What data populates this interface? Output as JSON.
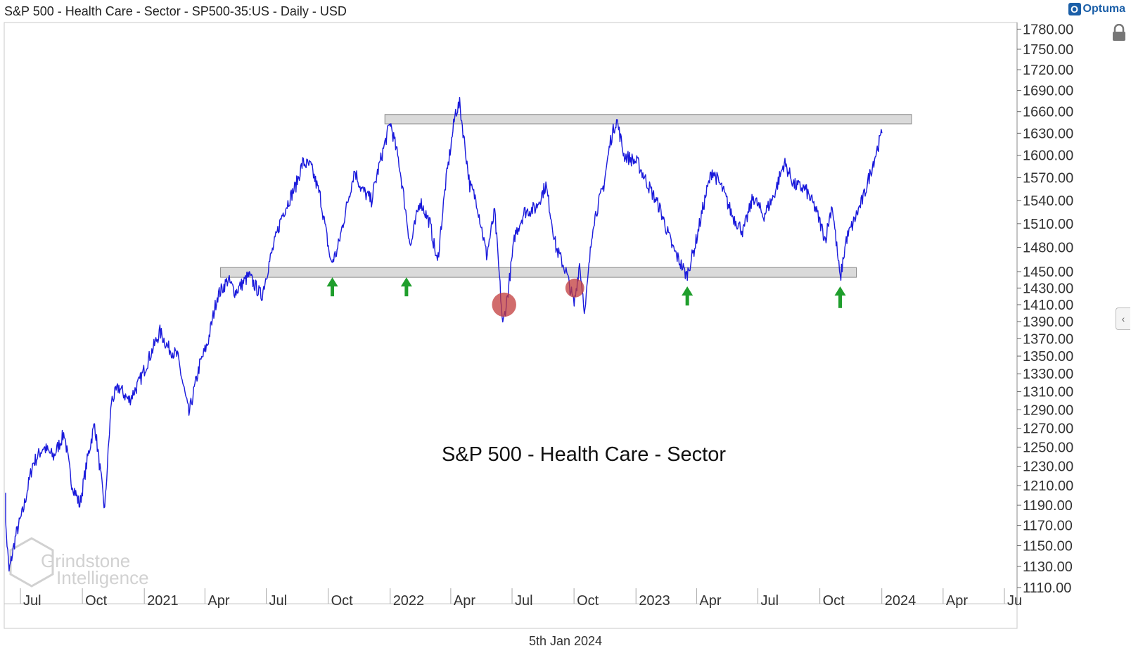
{
  "header": {
    "title": "S&P 500 - Health Care - Sector - SP500-35:US - Daily - USD",
    "brand": "Optuma",
    "brand_badge": "O"
  },
  "footer": {
    "date": "5th Jan 2024"
  },
  "watermark": {
    "line1": "Grindstone",
    "line2": "Intelligence"
  },
  "colors": {
    "price_line": "#1a1adb",
    "zone_fill": "#dadada",
    "arrow": "#1f9e2c",
    "circle": "#c23b3b"
  },
  "chart_data": {
    "type": "line",
    "title": "S&P 500 - Health Care - Sector",
    "xlabel": "",
    "ylabel": "",
    "ylim": [
      1110,
      1790
    ],
    "y_scale": "log",
    "grid": false,
    "x_tick_labels": [
      {
        "date": "2020-07-01",
        "label": "Jul"
      },
      {
        "date": "2020-10-01",
        "label": "Oct"
      },
      {
        "date": "2021-01-01",
        "label": "2021"
      },
      {
        "date": "2021-04-01",
        "label": "Apr"
      },
      {
        "date": "2021-07-01",
        "label": "Jul"
      },
      {
        "date": "2021-10-01",
        "label": "Oct"
      },
      {
        "date": "2022-01-01",
        "label": "2022"
      },
      {
        "date": "2022-04-01",
        "label": "Apr"
      },
      {
        "date": "2022-07-01",
        "label": "Jul"
      },
      {
        "date": "2022-10-01",
        "label": "Oct"
      },
      {
        "date": "2023-01-01",
        "label": "2023"
      },
      {
        "date": "2023-04-01",
        "label": "Apr"
      },
      {
        "date": "2023-07-01",
        "label": "Jul"
      },
      {
        "date": "2023-10-01",
        "label": "Oct"
      },
      {
        "date": "2024-01-01",
        "label": "2024"
      },
      {
        "date": "2024-04-01",
        "label": "Apr"
      },
      {
        "date": "2024-07-01",
        "label": "Ju"
      }
    ],
    "y_tick_labels": [
      "1780.00",
      "1750.00",
      "1720.00",
      "1690.00",
      "1660.00",
      "1630.00",
      "1600.00",
      "1570.00",
      "1540.00",
      "1510.00",
      "1480.00",
      "1450.00",
      "1430.00",
      "1410.00",
      "1390.00",
      "1370.00",
      "1350.00",
      "1330.00",
      "1310.00",
      "1290.00",
      "1270.00",
      "1250.00",
      "1230.00",
      "1210.00",
      "1190.00",
      "1170.00",
      "1150.00",
      "1130.00",
      "1110.00"
    ],
    "series": [
      {
        "points": [
          [
            "2020-06-01",
            1205
          ],
          [
            "2020-06-10",
            1125
          ],
          [
            "2020-06-20",
            1160
          ],
          [
            "2020-07-01",
            1185
          ],
          [
            "2020-07-15",
            1232
          ],
          [
            "2020-07-31",
            1250
          ],
          [
            "2020-08-15",
            1240
          ],
          [
            "2020-08-31",
            1265
          ],
          [
            "2020-09-10",
            1215
          ],
          [
            "2020-09-23",
            1190
          ],
          [
            "2020-10-05",
            1240
          ],
          [
            "2020-10-15",
            1275
          ],
          [
            "2020-10-30",
            1185
          ],
          [
            "2020-11-09",
            1300
          ],
          [
            "2020-11-20",
            1315
          ],
          [
            "2020-12-05",
            1300
          ],
          [
            "2020-12-20",
            1320
          ],
          [
            "2021-01-05",
            1350
          ],
          [
            "2021-01-20",
            1378
          ],
          [
            "2021-02-01",
            1360
          ],
          [
            "2021-02-15",
            1350
          ],
          [
            "2021-03-04",
            1285
          ],
          [
            "2021-03-20",
            1340
          ],
          [
            "2021-04-01",
            1365
          ],
          [
            "2021-04-15",
            1420
          ],
          [
            "2021-05-01",
            1440
          ],
          [
            "2021-05-12",
            1425
          ],
          [
            "2021-06-01",
            1445
          ],
          [
            "2021-06-20",
            1420
          ],
          [
            "2021-07-01",
            1460
          ],
          [
            "2021-07-20",
            1520
          ],
          [
            "2021-08-10",
            1560
          ],
          [
            "2021-08-20",
            1590
          ],
          [
            "2021-09-01",
            1585
          ],
          [
            "2021-09-15",
            1545
          ],
          [
            "2021-10-01",
            1460
          ],
          [
            "2021-10-10",
            1475
          ],
          [
            "2021-10-25",
            1535
          ],
          [
            "2021-11-05",
            1580
          ],
          [
            "2021-11-15",
            1555
          ],
          [
            "2021-11-30",
            1540
          ],
          [
            "2021-12-10",
            1580
          ],
          [
            "2021-12-28",
            1645
          ],
          [
            "2022-01-10",
            1590
          ],
          [
            "2022-01-27",
            1480
          ],
          [
            "2022-02-10",
            1540
          ],
          [
            "2022-02-25",
            1510
          ],
          [
            "2022-03-08",
            1460
          ],
          [
            "2022-03-20",
            1560
          ],
          [
            "2022-04-04",
            1660
          ],
          [
            "2022-04-10",
            1670
          ],
          [
            "2022-04-25",
            1560
          ],
          [
            "2022-05-05",
            1540
          ],
          [
            "2022-05-20",
            1470
          ],
          [
            "2022-06-01",
            1525
          ],
          [
            "2022-06-13",
            1385
          ],
          [
            "2022-06-20",
            1420
          ],
          [
            "2022-07-01",
            1495
          ],
          [
            "2022-07-15",
            1525
          ],
          [
            "2022-08-01",
            1530
          ],
          [
            "2022-08-16",
            1560
          ],
          [
            "2022-08-31",
            1480
          ],
          [
            "2022-09-15",
            1450
          ],
          [
            "2022-09-27",
            1410
          ],
          [
            "2022-10-05",
            1460
          ],
          [
            "2022-10-13",
            1400
          ],
          [
            "2022-10-25",
            1510
          ],
          [
            "2022-11-10",
            1560
          ],
          [
            "2022-11-20",
            1620
          ],
          [
            "2022-11-29",
            1650
          ],
          [
            "2022-12-10",
            1600
          ],
          [
            "2022-12-30",
            1590
          ],
          [
            "2023-01-15",
            1560
          ],
          [
            "2023-02-01",
            1530
          ],
          [
            "2023-02-20",
            1480
          ],
          [
            "2023-03-13",
            1445
          ],
          [
            "2023-03-25",
            1480
          ],
          [
            "2023-04-10",
            1545
          ],
          [
            "2023-04-20",
            1580
          ],
          [
            "2023-05-05",
            1555
          ],
          [
            "2023-05-20",
            1520
          ],
          [
            "2023-06-05",
            1500
          ],
          [
            "2023-06-20",
            1545
          ],
          [
            "2023-07-05",
            1520
          ],
          [
            "2023-07-20",
            1545
          ],
          [
            "2023-08-05",
            1590
          ],
          [
            "2023-08-20",
            1560
          ],
          [
            "2023-09-05",
            1555
          ],
          [
            "2023-09-20",
            1530
          ],
          [
            "2023-10-05",
            1490
          ],
          [
            "2023-10-15",
            1535
          ],
          [
            "2023-10-27",
            1440
          ],
          [
            "2023-11-05",
            1490
          ],
          [
            "2023-11-15",
            1510
          ],
          [
            "2023-12-01",
            1545
          ],
          [
            "2023-12-15",
            1590
          ],
          [
            "2023-12-28",
            1630
          ]
        ]
      }
    ],
    "annotations": {
      "title_text": "S&P 500 - Health Care - Sector",
      "zones": [
        {
          "name": "resistance",
          "from": "2021-12-20",
          "to": "2024-02-10",
          "y_low": 1643,
          "y_high": 1656
        },
        {
          "name": "support",
          "from": "2021-04-20",
          "to": "2023-11-20",
          "y_low": 1443,
          "y_high": 1455
        }
      ],
      "arrows": [
        {
          "date": "2021-10-03",
          "tip": 1443,
          "tail": 1420
        },
        {
          "date": "2022-01-21",
          "tip": 1443,
          "tail": 1420
        },
        {
          "date": "2023-03-14",
          "tip": 1432,
          "tail": 1409
        },
        {
          "date": "2023-10-27",
          "tip": 1432,
          "tail": 1406
        }
      ],
      "circles": [
        {
          "date": "2022-06-15",
          "value": 1410,
          "radius_days": 18
        },
        {
          "date": "2022-09-28",
          "value": 1430,
          "radius_days": 14
        }
      ]
    }
  }
}
